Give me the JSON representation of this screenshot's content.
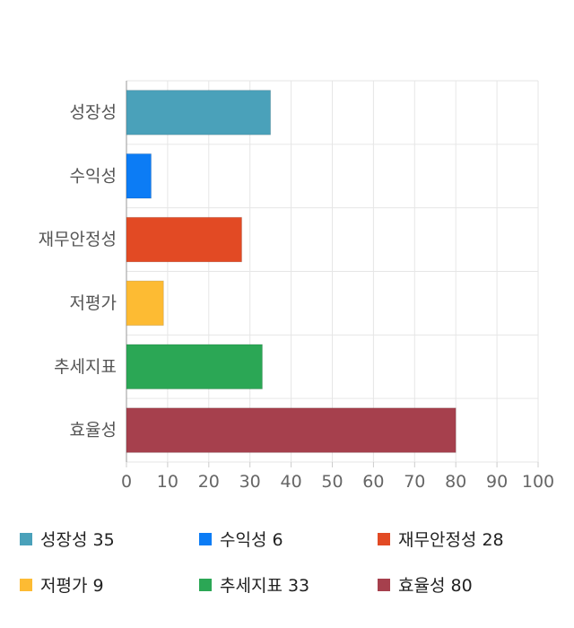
{
  "chart_data": {
    "type": "bar",
    "orientation": "horizontal",
    "categories": [
      "성장성",
      "수익성",
      "재무안정성",
      "저평가",
      "추세지표",
      "효율성"
    ],
    "values": [
      35,
      6,
      28,
      9,
      33,
      80
    ],
    "colors": [
      "#4aa1ba",
      "#0c7cf5",
      "#e24a24",
      "#fdbb33",
      "#2ba755",
      "#a6404d"
    ],
    "xlim": [
      0,
      100
    ],
    "xticks": [
      "0",
      "10",
      "20",
      "30",
      "40",
      "50",
      "60",
      "70",
      "80",
      "90",
      "100"
    ],
    "grid": true
  },
  "legend": {
    "items": [
      {
        "label": "성장성 35",
        "color": "#4aa1ba"
      },
      {
        "label": "수익성 6",
        "color": "#0c7cf5"
      },
      {
        "label": "재무안정성 28",
        "color": "#e24a24"
      },
      {
        "label": "저평가 9",
        "color": "#fdbb33"
      },
      {
        "label": "추세지표 33",
        "color": "#2ba755"
      },
      {
        "label": "효율성 80",
        "color": "#a6404d"
      }
    ]
  }
}
